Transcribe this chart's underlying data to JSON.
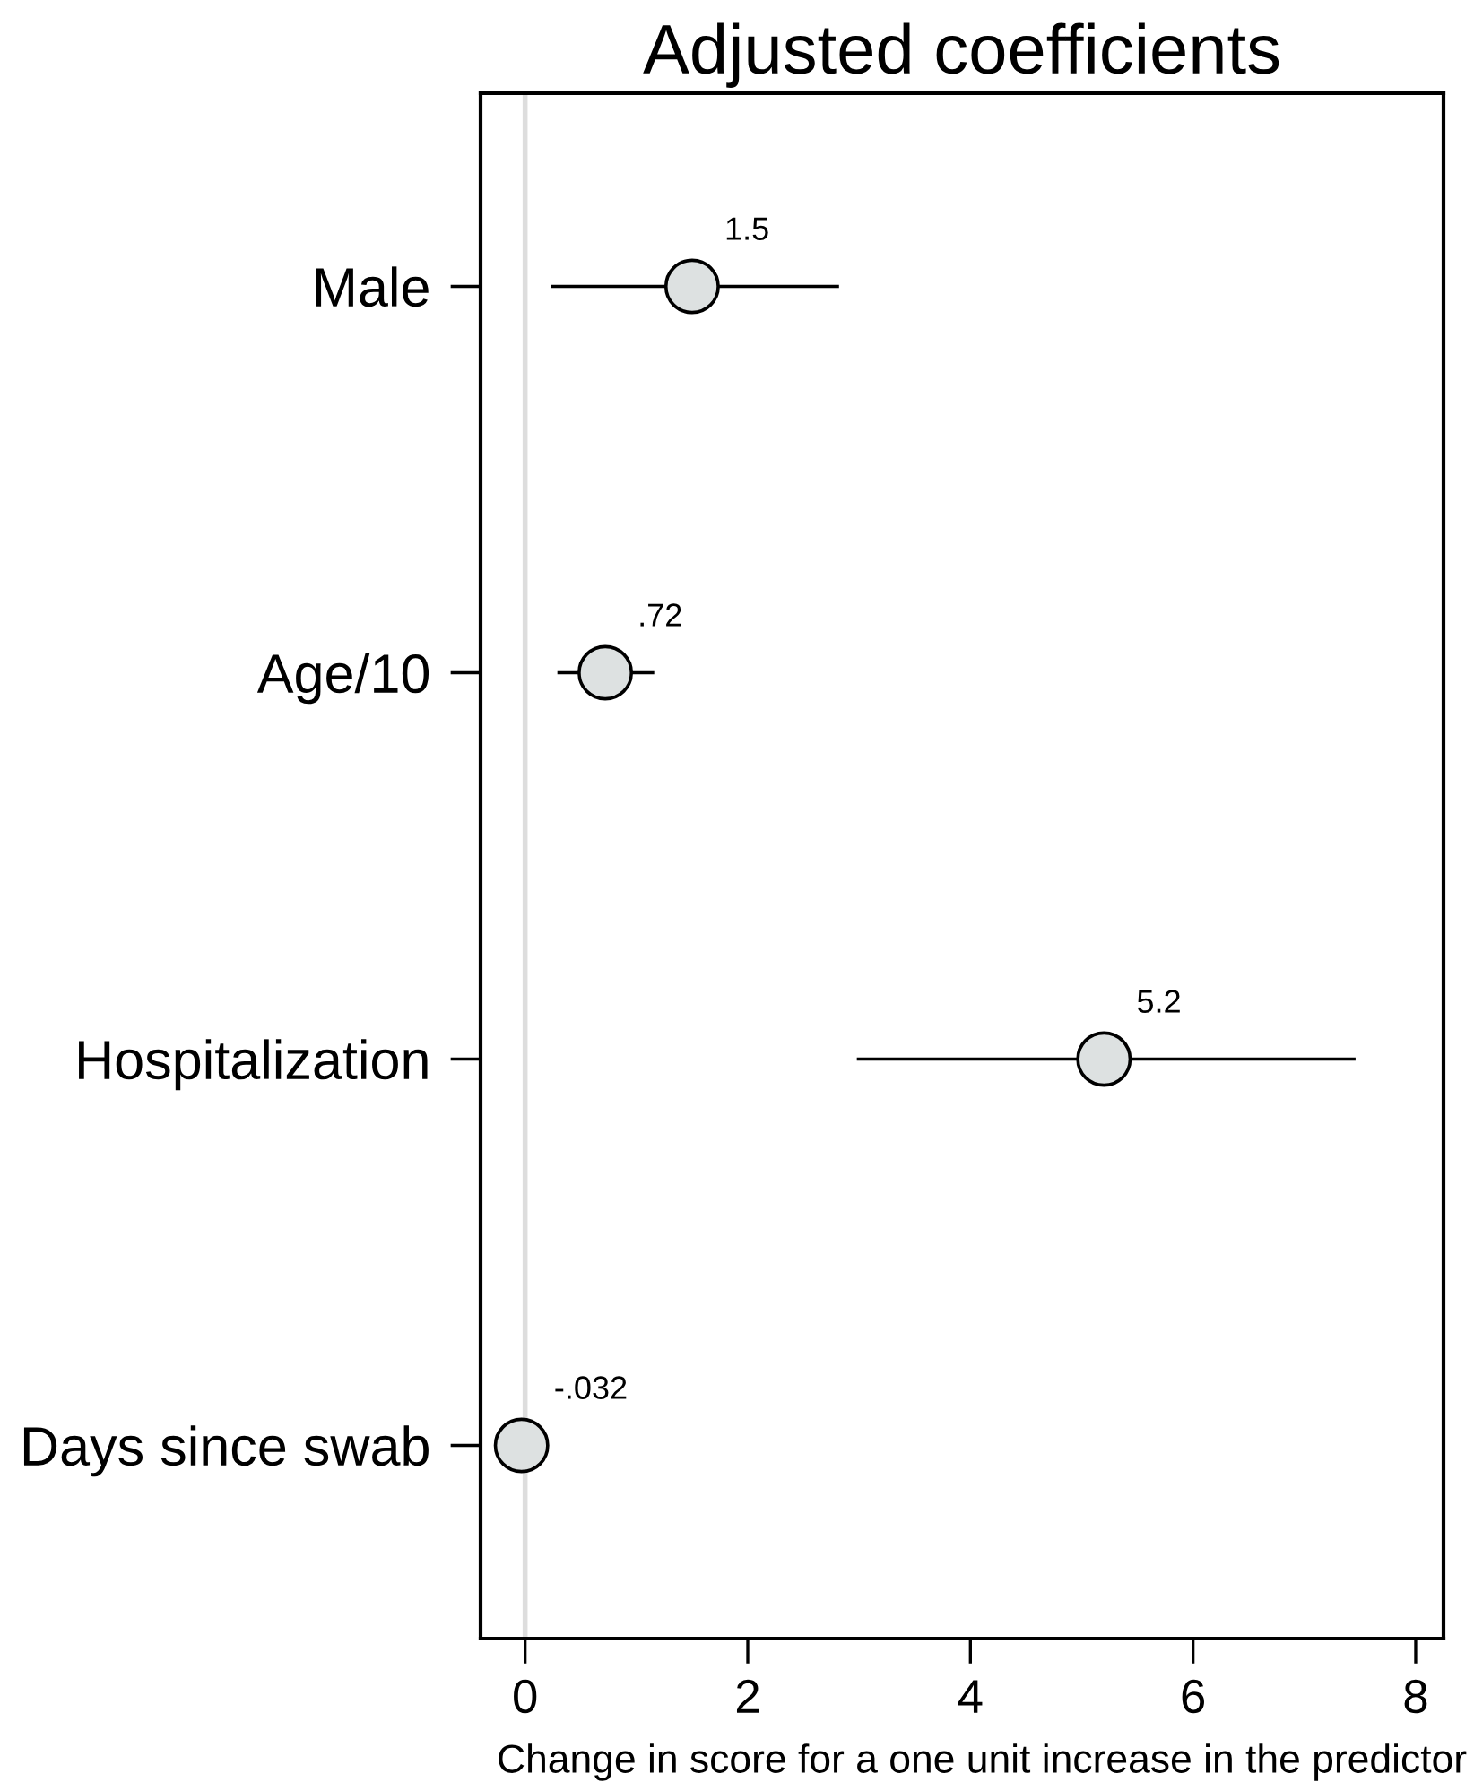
{
  "chart_data": {
    "type": "scatter",
    "orientation": "horizontal",
    "title": "Adjusted coefficients",
    "xlabel": "Change in score for a one unit increase in the predictor",
    "categories": [
      "Male",
      "Age/10",
      "Hospitalization",
      "Days since swab"
    ],
    "series": [
      {
        "color": "#dde1e1",
        "values": [
          1.5,
          0.72,
          5.2,
          -0.032
        ],
        "errors": [
          [
            0.23,
            2.82
          ],
          [
            0.29,
            1.16
          ],
          [
            2.98,
            7.46
          ],
          null
        ],
        "value_labels": [
          "1.5",
          ".72",
          "5.2",
          "-.032"
        ]
      }
    ],
    "xlim": [
      -0.4,
      8.25
    ],
    "xticks": [
      0,
      2,
      4,
      6,
      8
    ],
    "ref_lines": [
      {
        "axis": "x",
        "value": 0,
        "color": "#dddddd"
      }
    ],
    "marker": "circle"
  }
}
